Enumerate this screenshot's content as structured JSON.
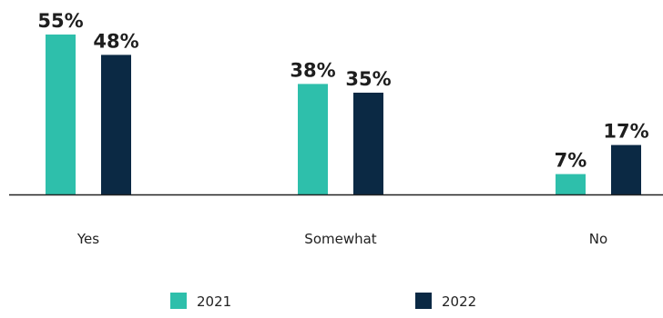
{
  "chart_data": {
    "type": "bar",
    "title": "",
    "xlabel": "",
    "ylabel": "",
    "categories": [
      "Yes",
      "Somewhat",
      "No"
    ],
    "series": [
      {
        "name": "2021",
        "values": [
          55,
          38,
          7
        ],
        "labels": [
          "55%",
          "38%",
          "7%"
        ],
        "color": "#2ebfab"
      },
      {
        "name": "2022",
        "values": [
          48,
          35,
          17
        ],
        "labels": [
          "48%",
          "35%",
          "17%"
        ],
        "color": "#0b2944"
      }
    ],
    "ylim": [
      0,
      55
    ],
    "grid": false,
    "legend": "bottom",
    "axis_color": "#222222"
  }
}
